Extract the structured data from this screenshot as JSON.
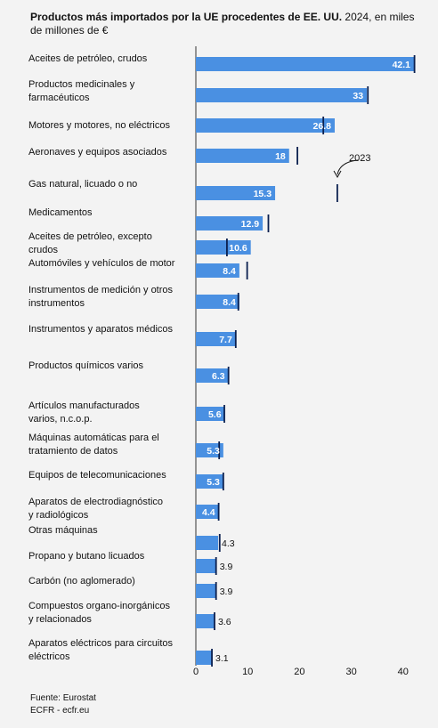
{
  "header": {
    "title_bold": "Productos más importados por la UE procedentes de EE. UU.",
    "subtitle": " 2024, en miles de millones de €"
  },
  "footer": {
    "source": "Fuente: Eurostat",
    "credit": "ECFR - ecfr.eu"
  },
  "chart_data": {
    "type": "bar",
    "orientation": "horizontal",
    "categories": [
      "Aceites de petróleo, crudos",
      "Productos medicinales y farmacéuticos",
      "Motores y motores, no eléctricos",
      "Aeronaves y equipos asociados",
      "Gas natural, licuado o no",
      "Medicamentos",
      "Aceites de petróleo, excepto crudos",
      "Automóviles y vehículos de motor",
      "Instrumentos de medición y otros instrumentos",
      "Instrumentos y aparatos médicos",
      "Productos químicos varios",
      "Artículos manufacturados varios, n.c.o.p.",
      "Máquinas automáticas para el tratamiento de datos",
      "Equipos de telecomunicaciones",
      "Aparatos de electrodiagnóstico y radiológicos",
      "Otras máquinas",
      "Propano y butano licuados",
      "Carbón (no aglomerado)",
      "Compuestos organo-inorgánicos y relacionados",
      "Aparatos eléctricos para circuitos eléctricos"
    ],
    "series": [
      {
        "name": "",
        "values": [
          42.1,
          33,
          26.8,
          18,
          15.3,
          12.9,
          10.6,
          8.4,
          8.4,
          7.7,
          6.3,
          5.6,
          5.3,
          5.3,
          4.4,
          4.3,
          3.9,
          3.9,
          3.6,
          3.1
        ],
        "value_labels": [
          "42.1",
          "33",
          "26.8",
          "18",
          "15.3",
          "12.9",
          "10.6",
          "8.4",
          "8.4",
          "7.7",
          "6.3",
          "5.6",
          "5.3",
          "5.3",
          "4.4",
          "4.3",
          "3.9",
          "3.9",
          "3.6",
          "3.1"
        ]
      },
      {
        "name": "2023",
        "values": [
          42.2,
          33.2,
          24.6,
          19.6,
          27.3,
          14,
          6,
          9.9,
          8.2,
          7.7,
          6.3,
          5.5,
          4.5,
          5.3,
          4.4,
          4.6,
          3.9,
          3.9,
          3.6,
          3.1
        ]
      }
    ],
    "annotation": "2023",
    "xticks": [
      0,
      10,
      20,
      30,
      40
    ],
    "xlim": [
      0,
      44
    ],
    "grid": false,
    "colors": {
      "bar": "#4a90e2",
      "marker": "#0a1f4e",
      "background": "#f3f3f3"
    }
  }
}
